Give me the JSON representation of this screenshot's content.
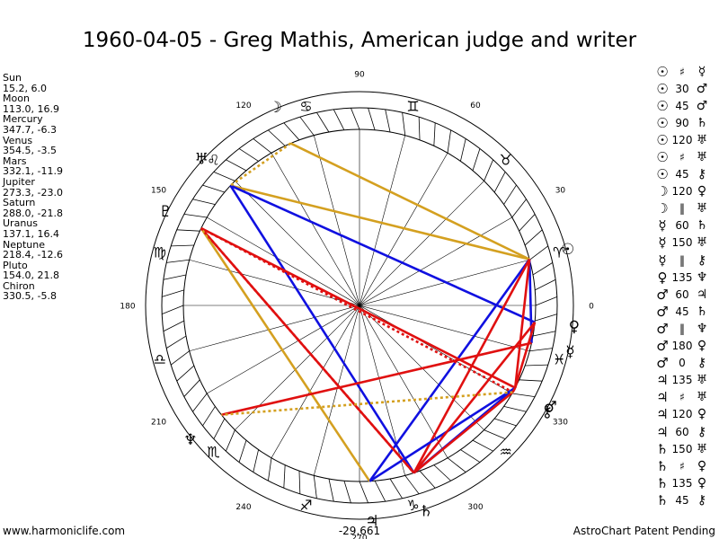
{
  "title": "1960-04-05 - Greg Mathis, American judge and writer",
  "planets": [
    {
      "name": "Sun",
      "values": "15.2, 6.0",
      "lon": 15.2,
      "glyph": "☉"
    },
    {
      "name": "Moon",
      "values": "113.0, 16.9",
      "lon": 113.0,
      "glyph": "☽"
    },
    {
      "name": "Mercury",
      "values": "347.7, -6.3",
      "lon": 347.7,
      "glyph": "☿"
    },
    {
      "name": "Venus",
      "values": "354.5, -3.5",
      "lon": 354.5,
      "glyph": "♀"
    },
    {
      "name": "Mars",
      "values": "332.1, -11.9",
      "lon": 332.1,
      "glyph": "♂"
    },
    {
      "name": "Jupiter",
      "values": "273.3, -23.0",
      "lon": 273.3,
      "glyph": "♃"
    },
    {
      "name": "Saturn",
      "values": "288.0, -21.8",
      "lon": 288.0,
      "glyph": "♄"
    },
    {
      "name": "Uranus",
      "values": "137.1, 16.4",
      "lon": 137.1,
      "glyph": "♅"
    },
    {
      "name": "Neptune",
      "values": "218.4, -12.6",
      "lon": 218.4,
      "glyph": "♆"
    },
    {
      "name": "Pluto",
      "values": "154.0, 21.8",
      "lon": 154.0,
      "glyph": "♇"
    },
    {
      "name": "Chiron",
      "values": "330.5, -5.8",
      "lon": 330.5,
      "glyph": "⚷"
    }
  ],
  "wheel": {
    "degree_labels": [
      "0",
      "30",
      "60",
      "90",
      "120",
      "150",
      "180",
      "210",
      "240",
      "270",
      "300",
      "330"
    ],
    "zodiac_glyphs": [
      "♈",
      "♉",
      "♊",
      "♋",
      "♌",
      "♍",
      "♎",
      "♏",
      "♐",
      "♑",
      "♒",
      "♓"
    ],
    "bottom_readout": "-29,661"
  },
  "aspect_lines": [
    {
      "a": 15.2,
      "b": 113.0,
      "color": "#d4a020",
      "style": "solid"
    },
    {
      "a": 15.2,
      "b": 137.1,
      "color": "#d4a020",
      "style": "solid"
    },
    {
      "a": 137.1,
      "b": 354.5,
      "color": "#1010e0",
      "style": "solid"
    },
    {
      "a": 137.1,
      "b": 288.0,
      "color": "#1010e0",
      "style": "solid"
    },
    {
      "a": 15.2,
      "b": 273.3,
      "color": "#1010e0",
      "style": "solid"
    },
    {
      "a": 15.2,
      "b": 347.7,
      "color": "#1010e0",
      "style": "solid"
    },
    {
      "a": 15.2,
      "b": 288.0,
      "color": "#e01010",
      "style": "solid"
    },
    {
      "a": 154.0,
      "b": 288.0,
      "color": "#e01010",
      "style": "solid"
    },
    {
      "a": 154.0,
      "b": 332.1,
      "color": "#e01010",
      "style": "solid"
    },
    {
      "a": 154.0,
      "b": 330.5,
      "color": "#e01010",
      "style": "dotted"
    },
    {
      "a": 154.0,
      "b": 273.3,
      "color": "#d4a020",
      "style": "solid"
    },
    {
      "a": 218.4,
      "b": 347.7,
      "color": "#e01010",
      "style": "solid"
    },
    {
      "a": 332.1,
      "b": 273.3,
      "color": "#1010e0",
      "style": "solid"
    },
    {
      "a": 332.1,
      "b": 288.0,
      "color": "#1010e0",
      "style": "solid"
    },
    {
      "a": 330.5,
      "b": 288.0,
      "color": "#e01010",
      "style": "solid"
    },
    {
      "a": 354.5,
      "b": 288.0,
      "color": "#e01010",
      "style": "solid"
    },
    {
      "a": 15.2,
      "b": 332.1,
      "color": "#e01010",
      "style": "solid"
    },
    {
      "a": 354.5,
      "b": 332.1,
      "color": "#e01010",
      "style": "solid"
    },
    {
      "a": 113.0,
      "b": 137.1,
      "color": "#d4a020",
      "style": "dotted"
    },
    {
      "a": 154.0,
      "b": 288.0,
      "color": "#e01010",
      "style": "dotted"
    },
    {
      "a": 330.5,
      "b": 218.4,
      "color": "#d4a020",
      "style": "dotted"
    },
    {
      "a": 330.5,
      "b": 332.1,
      "color": "#e01010",
      "style": "solid"
    }
  ],
  "aspect_table": [
    {
      "p1": "☉",
      "asp": "♯",
      "p2": "☿"
    },
    {
      "p1": "☉",
      "asp": "30",
      "p2": "♂"
    },
    {
      "p1": "☉",
      "asp": "45",
      "p2": "♂"
    },
    {
      "p1": "☉",
      "asp": "90",
      "p2": "♄"
    },
    {
      "p1": "☉",
      "asp": "120",
      "p2": "♅"
    },
    {
      "p1": "☉",
      "asp": "♯",
      "p2": "♅"
    },
    {
      "p1": "☉",
      "asp": "45",
      "p2": "⚷"
    },
    {
      "p1": "☽",
      "asp": "120",
      "p2": "♀"
    },
    {
      "p1": "☽",
      "asp": "‖",
      "p2": "♅"
    },
    {
      "p1": "☿",
      "asp": "60",
      "p2": "♄"
    },
    {
      "p1": "☿",
      "asp": "150",
      "p2": "♅"
    },
    {
      "p1": "☿",
      "asp": "‖",
      "p2": "⚷"
    },
    {
      "p1": "♀",
      "asp": "135",
      "p2": "♆"
    },
    {
      "p1": "♂",
      "asp": "60",
      "p2": "♃"
    },
    {
      "p1": "♂",
      "asp": "45",
      "p2": "♄"
    },
    {
      "p1": "♂",
      "asp": "‖",
      "p2": "♆"
    },
    {
      "p1": "♂",
      "asp": "180",
      "p2": "♀"
    },
    {
      "p1": "♂",
      "asp": "0",
      "p2": "⚷"
    },
    {
      "p1": "♃",
      "asp": "135",
      "p2": "♅"
    },
    {
      "p1": "♃",
      "asp": "♯",
      "p2": "♅"
    },
    {
      "p1": "♃",
      "asp": "120",
      "p2": "♀"
    },
    {
      "p1": "♃",
      "asp": "60",
      "p2": "⚷"
    },
    {
      "p1": "♄",
      "asp": "150",
      "p2": "♅"
    },
    {
      "p1": "♄",
      "asp": "♯",
      "p2": "♀"
    },
    {
      "p1": "♄",
      "asp": "135",
      "p2": "♀"
    },
    {
      "p1": "♄",
      "asp": "45",
      "p2": "⚷"
    }
  ],
  "footer": {
    "left": "www.harmoniclife.com",
    "right": "AstroChart Patent Pending"
  }
}
